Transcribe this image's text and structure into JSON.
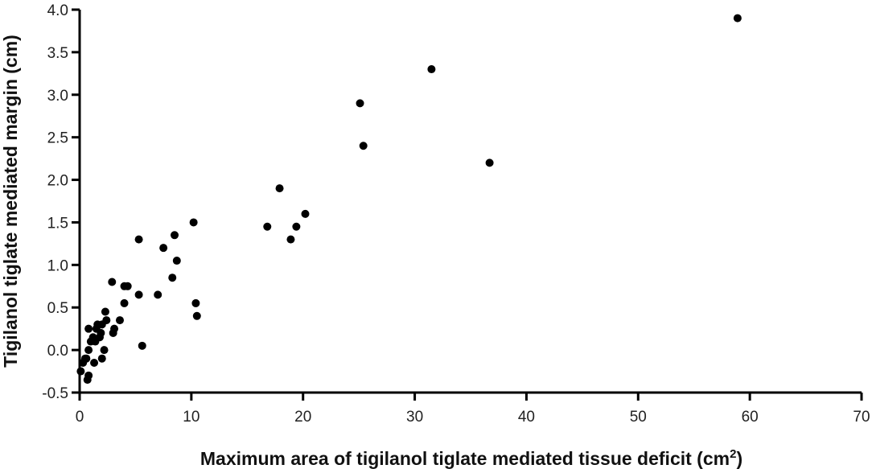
{
  "chart_data": {
    "type": "scatter",
    "title": "",
    "xlabel": "Maximum area of tigilanol tiglate mediated tissue deficit (cm",
    "xlabel_sup": "2",
    "xlabel_end": ")",
    "ylabel": "Tigilanol tiglate mediated margin (cm)",
    "xlim": [
      0,
      70
    ],
    "ylim": [
      -0.5,
      4.0
    ],
    "xticks": [
      0,
      10,
      20,
      30,
      40,
      50,
      60,
      70
    ],
    "yticks": [
      -0.5,
      0.0,
      0.5,
      1.0,
      1.5,
      2.0,
      2.5,
      3.0,
      3.5,
      4.0
    ],
    "xtick_labels": [
      "0",
      "10",
      "20",
      "30",
      "40",
      "50",
      "60",
      "70"
    ],
    "ytick_labels": [
      "-0.5",
      "0.0",
      "0.5",
      "1.0",
      "1.5",
      "2.0",
      "2.5",
      "3.0",
      "3.5",
      "4.0"
    ],
    "grid": false,
    "marker_color": "#000000",
    "points": [
      [
        0.1,
        -0.25
      ],
      [
        0.3,
        -0.15
      ],
      [
        0.5,
        -0.1
      ],
      [
        0.7,
        -0.35
      ],
      [
        0.8,
        -0.3
      ],
      [
        0.6,
        -0.1
      ],
      [
        0.8,
        0.0
      ],
      [
        0.8,
        0.25
      ],
      [
        1.0,
        0.1
      ],
      [
        1.2,
        0.15
      ],
      [
        1.3,
        -0.15
      ],
      [
        1.4,
        0.1
      ],
      [
        1.5,
        0.25
      ],
      [
        1.6,
        0.3
      ],
      [
        1.8,
        0.15
      ],
      [
        1.9,
        0.2
      ],
      [
        2.0,
        0.3
      ],
      [
        2.0,
        -0.1
      ],
      [
        2.2,
        0.0
      ],
      [
        2.3,
        0.45
      ],
      [
        2.4,
        0.35
      ],
      [
        2.9,
        0.8
      ],
      [
        3.0,
        0.2
      ],
      [
        3.1,
        0.25
      ],
      [
        3.6,
        0.35
      ],
      [
        4.0,
        0.55
      ],
      [
        4.0,
        0.75
      ],
      [
        4.3,
        0.75
      ],
      [
        5.3,
        1.3
      ],
      [
        5.3,
        0.65
      ],
      [
        5.6,
        0.05
      ],
      [
        7.0,
        0.65
      ],
      [
        7.5,
        1.2
      ],
      [
        8.3,
        0.85
      ],
      [
        8.5,
        1.35
      ],
      [
        8.7,
        1.05
      ],
      [
        10.2,
        1.5
      ],
      [
        10.4,
        0.55
      ],
      [
        10.5,
        0.4
      ],
      [
        16.8,
        1.45
      ],
      [
        17.9,
        1.9
      ],
      [
        18.9,
        1.3
      ],
      [
        19.4,
        1.45
      ],
      [
        20.2,
        1.6
      ],
      [
        25.1,
        2.9
      ],
      [
        25.4,
        2.4
      ],
      [
        31.5,
        3.3
      ],
      [
        36.7,
        2.2
      ],
      [
        58.9,
        3.9
      ]
    ]
  }
}
